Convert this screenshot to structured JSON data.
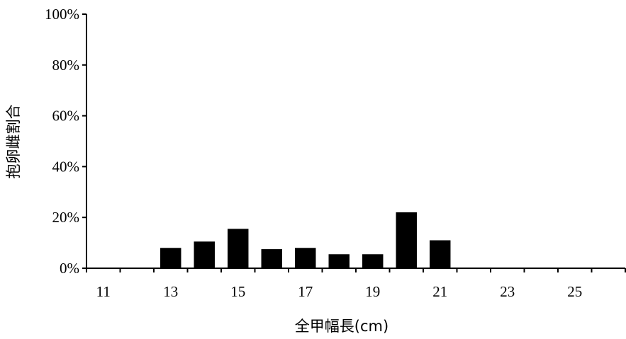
{
  "chart_data": {
    "type": "bar",
    "xlabel": "全甲幅長(cm)",
    "ylabel": "抱卵雌割合",
    "categories": [
      11,
      12,
      13,
      14,
      15,
      16,
      17,
      18,
      19,
      20,
      21,
      22,
      23,
      24,
      25,
      26
    ],
    "values": [
      0,
      0,
      8,
      10.5,
      15.5,
      7.5,
      8,
      5.5,
      5.5,
      22,
      11,
      0,
      0,
      0,
      0,
      0
    ],
    "x_tick_labels": [
      "11",
      "13",
      "15",
      "17",
      "19",
      "21",
      "23",
      "25"
    ],
    "y_tick_labels": [
      "0%",
      "20%",
      "40%",
      "60%",
      "80%",
      "100%"
    ],
    "ylim": [
      0,
      100
    ],
    "y_ticks": [
      0,
      20,
      40,
      60,
      80,
      100
    ],
    "grid": false,
    "legend": "none",
    "bar_color": "#000000"
  }
}
